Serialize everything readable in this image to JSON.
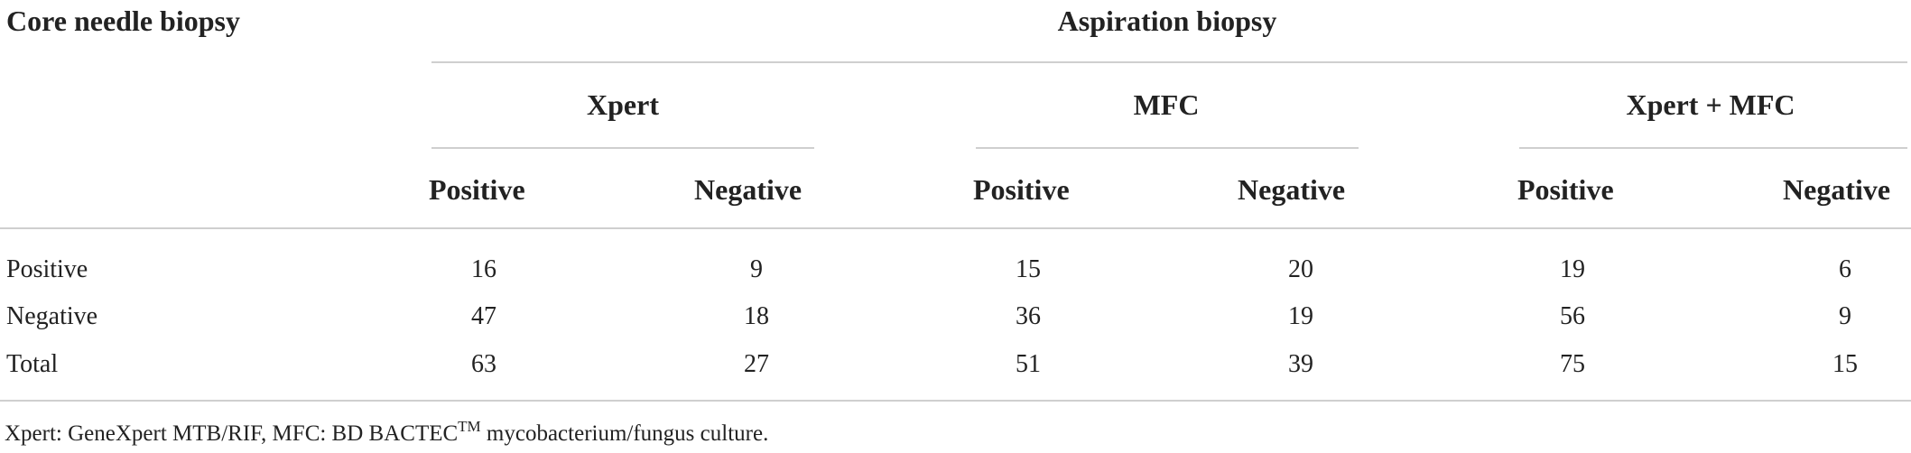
{
  "table": {
    "row_header_title": "Core needle biopsy",
    "group_title": "Aspiration biopsy",
    "methods": [
      "Xpert",
      "MFC",
      "Xpert + MFC"
    ],
    "subheaders": [
      "Positive",
      "Negative",
      "Positive",
      "Negative",
      "Positive",
      "Negative"
    ],
    "rows": [
      {
        "label": "Positive",
        "values": [
          "16",
          "9",
          "15",
          "20",
          "19",
          "6"
        ]
      },
      {
        "label": "Negative",
        "values": [
          "47",
          "18",
          "36",
          "19",
          "56",
          "9"
        ]
      },
      {
        "label": "Total",
        "values": [
          "63",
          "27",
          "51",
          "39",
          "75",
          "15"
        ]
      }
    ]
  },
  "footnote": {
    "text_before": "Xpert: GeneXpert MTB/RIF, MFC: BD BACTEC",
    "superscript": "TM",
    "text_after": " mycobacterium/fungus culture."
  }
}
